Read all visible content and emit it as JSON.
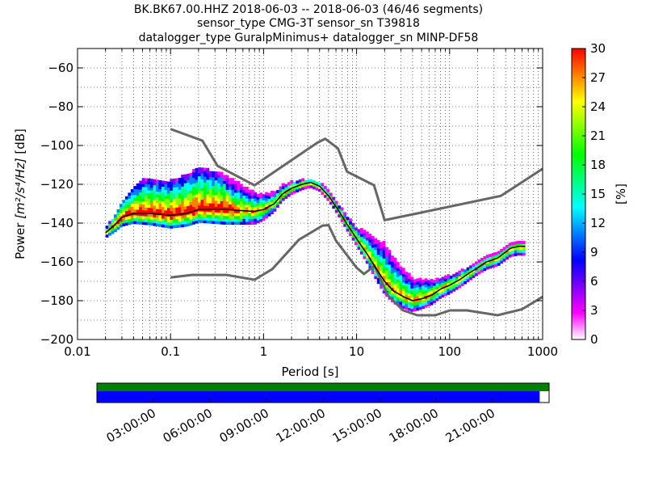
{
  "chart_data": {
    "type": "heatmap",
    "title_lines": [
      "BK.BK67.00.HHZ   2018-06-03 -- 2018-06-03  (46/46 segments)",
      "sensor_type CMG-3T sensor_sn T39818",
      "datalogger_type GuralpMinimus+ datalogger_sn MINP-DF58"
    ],
    "xlabel": "Period [s]",
    "ylabel": "Power [m²/s⁴/Hz] [dB]",
    "ylabel_prefix": "Power ",
    "ylabel_math": "[m²/s⁴/Hz]",
    "ylabel_suffix": " [dB]",
    "x_scale": "log",
    "xlim": [
      0.01,
      1000
    ],
    "ylim": [
      -200,
      -50
    ],
    "x_ticks": [
      {
        "value": 0.01,
        "label": "0.01"
      },
      {
        "value": 0.1,
        "label": "0.1"
      },
      {
        "value": 1,
        "label": "1"
      },
      {
        "value": 10,
        "label": "10"
      },
      {
        "value": 100,
        "label": "100"
      },
      {
        "value": 1000,
        "label": "1000"
      }
    ],
    "y_ticks": [
      {
        "value": -60,
        "label": "−60"
      },
      {
        "value": -80,
        "label": "−80"
      },
      {
        "value": -100,
        "label": "−100"
      },
      {
        "value": -120,
        "label": "−120"
      },
      {
        "value": -140,
        "label": "−140"
      },
      {
        "value": -160,
        "label": "−160"
      },
      {
        "value": -180,
        "label": "−180"
      },
      {
        "value": -200,
        "label": "−200"
      }
    ],
    "grid": "dotted",
    "colorbar": {
      "label": "[%]",
      "min": 0,
      "max": 30,
      "ticks": [
        {
          "value": 0,
          "label": "0"
        },
        {
          "value": 3,
          "label": "3"
        },
        {
          "value": 6,
          "label": "6"
        },
        {
          "value": 9,
          "label": "9"
        },
        {
          "value": 12,
          "label": "12"
        },
        {
          "value": 15,
          "label": "15"
        },
        {
          "value": 18,
          "label": "18"
        },
        {
          "value": 21,
          "label": "21"
        },
        {
          "value": 24,
          "label": "24"
        },
        {
          "value": 27,
          "label": "27"
        },
        {
          "value": 30,
          "label": "30"
        }
      ],
      "colors": [
        "#ffffff",
        "#ff00ff",
        "#7f00ff",
        "#0000ff",
        "#007fff",
        "#00ffff",
        "#00ff7f",
        "#00ff00",
        "#7fff00",
        "#ffff00",
        "#ff7f00",
        "#ff0000"
      ]
    },
    "noise_models": [
      {
        "name": "high_noise_model",
        "color": "#666666",
        "points": [
          [
            0.1,
            -91.5
          ],
          [
            0.22,
            -97.5
          ],
          [
            0.32,
            -110.5
          ],
          [
            0.8,
            -120.5
          ],
          [
            3.8,
            -98.5
          ],
          [
            4.6,
            -96.5
          ],
          [
            6.3,
            -101.5
          ],
          [
            7.9,
            -113.5
          ],
          [
            15.4,
            -120.5
          ],
          [
            20.0,
            -138.5
          ],
          [
            354.8,
            -126.0
          ],
          [
            1000,
            -112.0
          ]
        ]
      },
      {
        "name": "low_noise_model",
        "color": "#666666",
        "points": [
          [
            0.1,
            -168.0
          ],
          [
            0.17,
            -166.7
          ],
          [
            0.4,
            -166.7
          ],
          [
            0.8,
            -169.2
          ],
          [
            1.24,
            -163.7
          ],
          [
            2.4,
            -148.6
          ],
          [
            4.3,
            -141.3
          ],
          [
            5.0,
            -141.1
          ],
          [
            6.0,
            -149.0
          ],
          [
            10.0,
            -163.0
          ],
          [
            12.0,
            -166.2
          ],
          [
            15.6,
            -162.1
          ],
          [
            21.9,
            -177.5
          ],
          [
            31.6,
            -185.0
          ],
          [
            45.0,
            -187.5
          ],
          [
            70.0,
            -187.5
          ],
          [
            101.0,
            -185.0
          ],
          [
            154.0,
            -185.0
          ],
          [
            328.0,
            -187.5
          ],
          [
            600.0,
            -184.4
          ],
          [
            1000,
            -178.0
          ]
        ]
      }
    ],
    "mode_curve": {
      "name": "mode",
      "color": "#000000",
      "points": [
        [
          0.02,
          -145.0
        ],
        [
          0.025,
          -141.0
        ],
        [
          0.03,
          -137.0
        ],
        [
          0.04,
          -135.0
        ],
        [
          0.06,
          -135.0
        ],
        [
          0.1,
          -136.0
        ],
        [
          0.15,
          -135.0
        ],
        [
          0.2,
          -133.0
        ],
        [
          0.4,
          -133.0
        ],
        [
          0.8,
          -134.0
        ],
        [
          1.0,
          -133.0
        ],
        [
          1.3,
          -130.0
        ],
        [
          1.6,
          -125.0
        ],
        [
          2.0,
          -122.0
        ],
        [
          2.6,
          -120.0
        ],
        [
          3.2,
          -119.0
        ],
        [
          4.0,
          -121.0
        ],
        [
          5.0,
          -126.0
        ],
        [
          6.3,
          -133.0
        ],
        [
          8.0,
          -141.0
        ],
        [
          10.0,
          -148.0
        ],
        [
          13.0,
          -156.0
        ],
        [
          16.0,
          -163.0
        ],
        [
          20.0,
          -170.0
        ],
        [
          25.0,
          -175.0
        ],
        [
          32.0,
          -178.0
        ],
        [
          40.0,
          -180.0
        ],
        [
          50.0,
          -179.0
        ],
        [
          65.0,
          -177.0
        ],
        [
          80.0,
          -174.0
        ],
        [
          100.0,
          -172.0
        ],
        [
          130.0,
          -169.0
        ],
        [
          160.0,
          -166.0
        ],
        [
          200.0,
          -163.0
        ],
        [
          250.0,
          -160.0
        ],
        [
          330.0,
          -158.0
        ],
        [
          450.0,
          -153.0
        ],
        [
          550.0,
          -152.0
        ],
        [
          650.0,
          -152.0
        ]
      ]
    },
    "density": {
      "description_units": "percent of segments",
      "spread_db_above_mode": [
        [
          0.02,
          2
        ],
        [
          0.03,
          8
        ],
        [
          0.05,
          18
        ],
        [
          0.1,
          18
        ],
        [
          0.2,
          22
        ],
        [
          0.4,
          18
        ],
        [
          0.8,
          10
        ],
        [
          1.5,
          5
        ],
        [
          3.0,
          2
        ],
        [
          6.0,
          3
        ],
        [
          10.0,
          6
        ],
        [
          20.0,
          20
        ],
        [
          40.0,
          12
        ],
        [
          80.0,
          6
        ],
        [
          200.0,
          3
        ],
        [
          650.0,
          2
        ]
      ],
      "spread_db_below_mode": [
        [
          0.02,
          2
        ],
        [
          0.03,
          4
        ],
        [
          0.05,
          5
        ],
        [
          0.1,
          6
        ],
        [
          0.2,
          6
        ],
        [
          0.4,
          7
        ],
        [
          0.8,
          6
        ],
        [
          1.5,
          3
        ],
        [
          3.0,
          2
        ],
        [
          6.0,
          2
        ],
        [
          10.0,
          3
        ],
        [
          20.0,
          6
        ],
        [
          40.0,
          5
        ],
        [
          80.0,
          4
        ],
        [
          200.0,
          3
        ],
        [
          650.0,
          4
        ]
      ]
    }
  },
  "timeline": {
    "ticks": [
      {
        "value": 3,
        "label": "03:00:00"
      },
      {
        "value": 6,
        "label": "06:00:00"
      },
      {
        "value": 9,
        "label": "09:00:00"
      },
      {
        "value": 12,
        "label": "12:00:00"
      },
      {
        "value": 15,
        "label": "15:00:00"
      },
      {
        "value": 18,
        "label": "18:00:00"
      },
      {
        "value": 21,
        "label": "21:00:00"
      }
    ],
    "range_hours": [
      0,
      24
    ],
    "data_coverage_hours": [
      0,
      24
    ],
    "used_coverage_hours": [
      0,
      23.5
    ],
    "data_color": "#008000",
    "used_color": "#0000ff"
  }
}
